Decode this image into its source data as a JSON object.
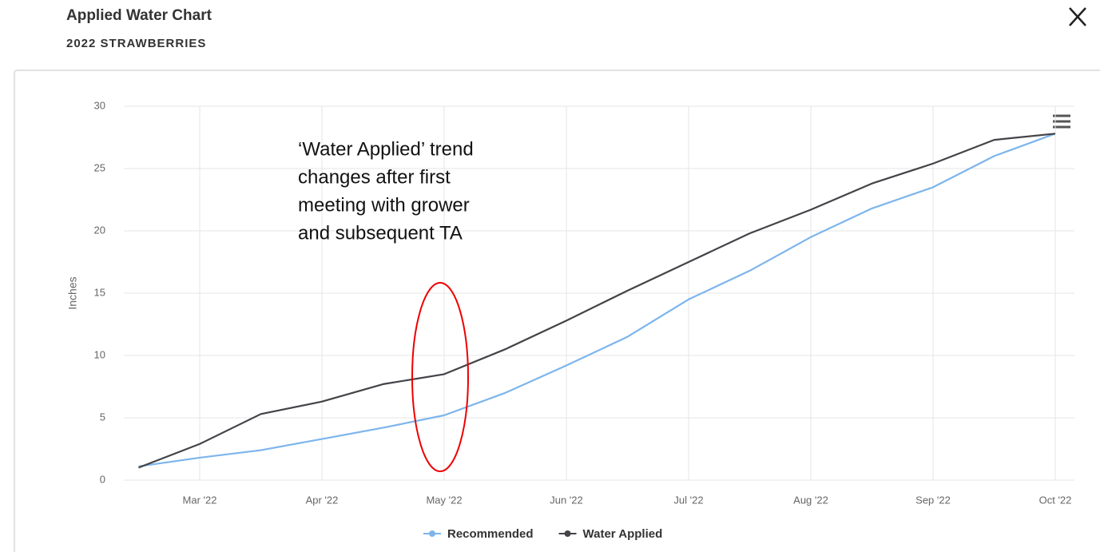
{
  "chart_data": {
    "type": "line",
    "title": "Applied Water Chart",
    "subtitle": "2022 STRAWBERRIES",
    "y_label": "Inches",
    "annotation": [
      "‘Water Applied’ trend",
      "changes after first",
      "meeting with grower",
      "and subsequent TA"
    ],
    "categories": [
      null,
      "Mar '22",
      null,
      "Apr '22",
      null,
      "May '22",
      null,
      "Jun '22",
      null,
      "Jul '22",
      null,
      "Aug '22",
      null,
      "Sep '22",
      null,
      "Oct '22"
    ],
    "series": [
      {
        "name": "Recommended",
        "color": "#7cb5ec",
        "values": [
          1.1,
          1.8,
          2.4,
          3.3,
          4.2,
          5.2,
          7.0,
          9.2,
          11.5,
          14.5,
          16.8,
          19.5,
          21.8,
          23.5,
          26.0,
          27.8
        ]
      },
      {
        "name": "Water Applied",
        "color": "#434348",
        "values": [
          1.0,
          2.9,
          5.3,
          6.3,
          7.7,
          8.5,
          10.5,
          12.8,
          15.2,
          17.5,
          19.8,
          21.7,
          23.8,
          25.4,
          27.3,
          27.8
        ]
      }
    ],
    "ylim": [
      0,
      30
    ],
    "yticks": [
      0,
      5,
      10,
      15,
      20,
      25,
      30
    ],
    "grid": true,
    "legend": "bottom"
  }
}
